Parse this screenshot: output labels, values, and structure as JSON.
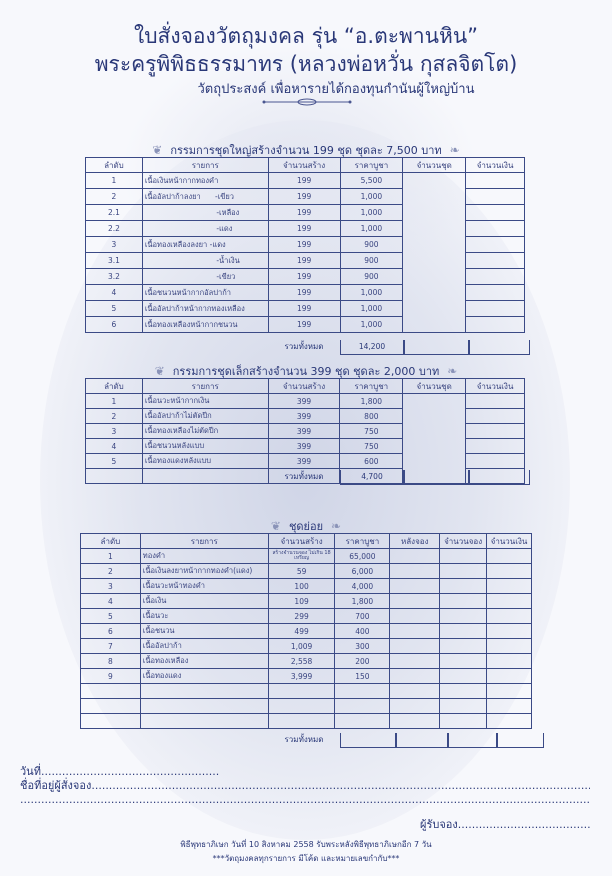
{
  "header": {
    "title": "ใบสั่งจองวัตถุมงคล รุ่น “อ.ตะพานหิน”",
    "subtitle": "พระครูพิพิธธรรมาทร (หลวงพ่อหวั่น กุสลจิตโต)",
    "purpose": "วัตถุประสงค์ เพื่อหารายได้กองทุนกำนันผู้ใหญ่บ้าน"
  },
  "colors": {
    "text": "#2a3878",
    "border": "#3b4a86",
    "background": "#f7f8fc"
  },
  "large_set": {
    "title": "กรรมการชุดใหญ่สร้างจำนวน 199 ชุด ชุดละ 7,500 บาท",
    "columns": [
      "ลำดับ",
      "รายการ",
      "จำนวนสร้าง",
      "ราคาบูชา",
      "จำนวนชุด",
      "จำนวนเงิน"
    ],
    "rows": [
      [
        "1",
        "เนื้อเงินหน้ากากทองคำ",
        "199",
        "5,500"
      ],
      [
        "2",
        "เนื้ออัลปาก้าลงยา      -เขียว",
        "199",
        "1,000"
      ],
      [
        "2.1",
        "                              -เหลือง",
        "199",
        "1,000"
      ],
      [
        "2.2",
        "                              -แดง",
        "199",
        "1,000"
      ],
      [
        "3",
        "เนื้อทองเหลืองลงยา -แดง",
        "199",
        "900"
      ],
      [
        "3.1",
        "                              -น้ำเงิน",
        "199",
        "900"
      ],
      [
        "3.2",
        "                              -เขียว",
        "199",
        "900"
      ],
      [
        "4",
        "เนื้อชนวนหน้ากากอัลปาก้า",
        "199",
        "1,000"
      ],
      [
        "5",
        "เนื้ออัลปาก้าหน้ากากทองเหลือง",
        "199",
        "1,000"
      ],
      [
        "6",
        "เนื้อทองเหลืองหน้ากากชนวน",
        "199",
        "1,000"
      ]
    ],
    "total_label": "รวมทั้งหมด",
    "total_value": "14,200"
  },
  "small_set": {
    "title": "กรรมการชุดเล็กสร้างจำนวน 399 ชุด ชุดละ 2,000 บาท",
    "columns": [
      "ลำดับ",
      "รายการ",
      "จำนวนสร้าง",
      "ราคาบูชา",
      "จำนวนชุด",
      "จำนวนเงิน"
    ],
    "rows": [
      [
        "1",
        "เนื้อนวะหน้ากากเงิน",
        "399",
        "1,800"
      ],
      [
        "2",
        "เนื้ออัลปาก้าไม่ตัดปีก",
        "399",
        "800"
      ],
      [
        "3",
        "เนื้อทองเหลืองไม่ตัดปีก",
        "399",
        "750"
      ],
      [
        "4",
        "เนื้อชนวนหลังแบบ",
        "399",
        "750"
      ],
      [
        "5",
        "เนื้อทองแดงหลังแบบ",
        "399",
        "600"
      ],
      [
        "",
        "",
        "",
        ""
      ]
    ],
    "total_label": "รวมทั้งหมด",
    "total_value": "4,700"
  },
  "sub_set": {
    "title": "ชุดย่อย",
    "columns": [
      "ลำดับ",
      "รายการ",
      "จำนวนสร้าง",
      "ราคาบูชา",
      "หลังจอง",
      "จำนวนจอง",
      "จำนวนเงิน"
    ],
    "rows": [
      [
        "1",
        "ทองคำ",
        "สร้างจำนวนจอง ไม่เกิน 18 เหรียญ",
        "65,000"
      ],
      [
        "2",
        "เนื้อเงินลงยาหน้ากากทองคำ(แดง)",
        "59",
        "6,000"
      ],
      [
        "3",
        "เนื้อนวะหน้าทองคำ",
        "100",
        "4,000"
      ],
      [
        "4",
        "เนื้อเงิน",
        "109",
        "1,800"
      ],
      [
        "5",
        "เนื้อนวะ",
        "299",
        "700"
      ],
      [
        "6",
        "เนื้อชนวน",
        "499",
        "400"
      ],
      [
        "7",
        "เนื้ออัลปาก้า",
        "1,009",
        "300"
      ],
      [
        "8",
        "เนื้อทองเหลือง",
        "2,558",
        "200"
      ],
      [
        "9",
        "เนื้อทองแดง",
        "3,999",
        "150"
      ],
      [
        "",
        "",
        "",
        ""
      ],
      [
        "",
        "",
        "",
        ""
      ],
      [
        "",
        "",
        "",
        ""
      ]
    ],
    "total_label": "รวมทั้งหมด",
    "total_value": ""
  },
  "form": {
    "date_label": "วันที่",
    "orderer_label": "ชื่อที่อยู่ผู้สั่งจอง",
    "receiver_label": "ผู้รับจอง"
  },
  "footer": {
    "ceremony": "พิธีพุทธาภิเษก วันที่ 10 สิงหาคม 2558 รับพระหลังพิธีพุทธาภิเษกอีก 7 วัน",
    "note": "***วัตถุมงคลทุกรายการ มีโค้ด และหมายเลขกำกับ***"
  }
}
